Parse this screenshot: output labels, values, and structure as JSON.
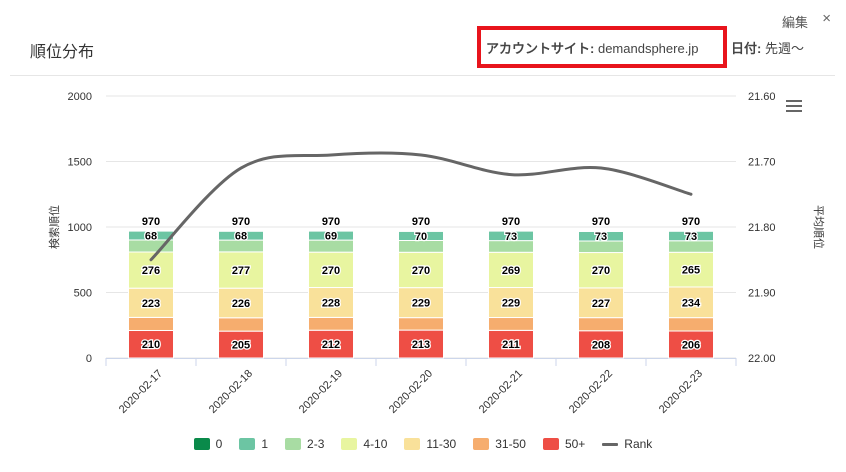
{
  "header": {
    "title": "順位分布",
    "edit_label": "編集",
    "close_icon": "×",
    "site_label": "アカウントサイト:",
    "site_value": "demandsphere.jp",
    "date_label": "日付:",
    "date_value": "先週〜"
  },
  "colors": {
    "0": "#0a8a4a",
    "1": "#6cc5a3",
    "2-3": "#a8dca3",
    "4-10": "#e8f5a0",
    "11-30": "#f9e19a",
    "31-50": "#f6ad6e",
    "50+": "#ee4e45",
    "rank_line": "#666666",
    "highlight_box": "#e8141c"
  },
  "chart_data": {
    "type": "bar",
    "stacked": true,
    "categories": [
      "2020-02-17",
      "2020-02-18",
      "2020-02-19",
      "2020-02-20",
      "2020-02-21",
      "2020-02-22",
      "2020-02-23"
    ],
    "series": [
      {
        "name": "50+",
        "values": [
          210,
          205,
          212,
          213,
          211,
          208,
          206
        ]
      },
      {
        "name": "31-50",
        "values": [
          100,
          102,
          98,
          95,
          98,
          100,
          102
        ]
      },
      {
        "name": "11-30",
        "values": [
          223,
          226,
          228,
          229,
          229,
          227,
          234
        ]
      },
      {
        "name": "4-10",
        "values": [
          276,
          277,
          270,
          270,
          269,
          270,
          265
        ]
      },
      {
        "name": "2-3",
        "values": [
          92,
          90,
          92,
          90,
          89,
          88,
          88
        ]
      },
      {
        "name": "1",
        "values": [
          68,
          68,
          69,
          70,
          73,
          73,
          73
        ]
      },
      {
        "name": "0",
        "values": [
          1,
          2,
          1,
          3,
          1,
          4,
          2
        ]
      }
    ],
    "labeled_series": [
      "50+",
      "11-30",
      "4-10",
      "1"
    ],
    "totals": [
      970,
      970,
      970,
      970,
      970,
      970,
      970
    ],
    "rank": {
      "name": "Rank",
      "values": [
        21.85,
        21.71,
        21.69,
        21.69,
        21.72,
        21.71,
        21.75
      ]
    },
    "ylabel": "検索順位",
    "y2label": "平均順位",
    "ylim": [
      0,
      2000
    ],
    "y_ticks": [
      0,
      500,
      1000,
      1500,
      2000
    ],
    "y2lim": [
      21.6,
      22.0
    ],
    "y2_ticks": [
      "21.60",
      "21.70",
      "21.80",
      "21.90",
      "22.00"
    ],
    "y2_reversed": true,
    "grid": true,
    "legend": {
      "position": "bottom",
      "items": [
        "0",
        "1",
        "2-3",
        "4-10",
        "11-30",
        "31-50",
        "50+",
        "Rank"
      ]
    }
  }
}
